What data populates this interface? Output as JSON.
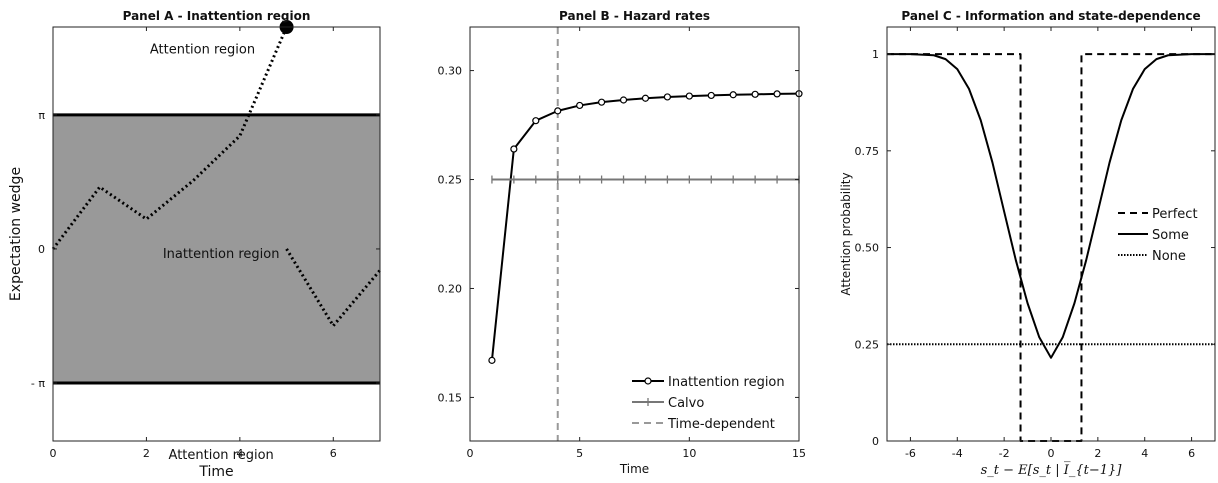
{
  "chart_data": [
    {
      "panel": "A",
      "type": "line",
      "title": "Panel A - Inattention region",
      "xlabel": "Time",
      "ylabel": "Expectation wedge",
      "xlim": [
        0,
        7
      ],
      "ylim": [
        -4.5,
        5.2
      ],
      "xticks": [
        0,
        2,
        4,
        6
      ],
      "yticks": [
        {
          "value": 3.14159,
          "label": "π"
        },
        {
          "value": 0,
          "label": "0"
        },
        {
          "value": -3.14159,
          "label": "- π"
        }
      ],
      "band": {
        "lower": -3.14159,
        "upper": 3.14159,
        "color": "#999999",
        "edge_color": "#000000"
      },
      "annotations": [
        {
          "text": "Attention region",
          "x": 3.2,
          "y": 4.7
        },
        {
          "text": "Inattention region",
          "x": 3.6,
          "y": -0.1
        },
        {
          "text": "Attention region",
          "x": 3.6,
          "y": -4.8
        }
      ],
      "series": [
        {
          "style": "dotted",
          "color": "#000000",
          "x": [
            0,
            1,
            2,
            3,
            4,
            5
          ],
          "y": [
            0,
            1.45,
            0.7,
            1.6,
            2.65,
            5.2
          ]
        },
        {
          "style": "dotted",
          "color": "#000000",
          "x": [
            5,
            6,
            7
          ],
          "y": [
            0,
            -1.8,
            -0.5
          ]
        }
      ],
      "marker": {
        "x": 5,
        "y": 5.2,
        "shape": "filled-circle"
      }
    },
    {
      "panel": "B",
      "type": "line",
      "title": "Panel B - Hazard rates",
      "xlabel": "Time",
      "ylabel": "",
      "xlim": [
        0,
        15
      ],
      "ylim": [
        0.13,
        0.32
      ],
      "xticks": [
        0,
        5,
        10,
        15
      ],
      "yticks": [
        0.15,
        0.2,
        0.25,
        0.3
      ],
      "ytick_labels": [
        "0.15",
        "0.20",
        "0.25",
        "0.30"
      ],
      "legend_position": "bottom-right",
      "vline": {
        "x": 4,
        "style": "dashed",
        "color": "#999999"
      },
      "series": [
        {
          "name": "Inattention region",
          "style": "solid-circles",
          "color": "#000000",
          "x": [
            1,
            2,
            3,
            4,
            5,
            6,
            7,
            8,
            9,
            10,
            11,
            12,
            13,
            14,
            15
          ],
          "y": [
            0.167,
            0.264,
            0.277,
            0.2815,
            0.284,
            0.2855,
            0.2865,
            0.2873,
            0.2879,
            0.2883,
            0.2886,
            0.2889,
            0.2891,
            0.2893,
            0.2894
          ]
        },
        {
          "name": "Calvo",
          "style": "solid-plus",
          "color": "#777777",
          "x": [
            1,
            2,
            3,
            4,
            5,
            6,
            7,
            8,
            9,
            10,
            11,
            12,
            13,
            14,
            15
          ],
          "y": [
            0.25,
            0.25,
            0.25,
            0.25,
            0.25,
            0.25,
            0.25,
            0.25,
            0.25,
            0.25,
            0.25,
            0.25,
            0.25,
            0.25,
            0.25
          ]
        },
        {
          "name": "Time-dependent",
          "style": "dashed",
          "color": "#999999",
          "x": [],
          "y": []
        }
      ]
    },
    {
      "panel": "C",
      "type": "line",
      "title": "Panel C - Information and state-dependence",
      "xlabel": "s_t − E[s_t | I̅_{t−1}]",
      "ylabel": "Attention probability",
      "xlim": [
        -7,
        7
      ],
      "ylim": [
        0,
        1.07
      ],
      "xticks": [
        -6,
        -4,
        -2,
        0,
        2,
        4,
        6
      ],
      "yticks": [
        0,
        0.25,
        0.5,
        0.75,
        1
      ],
      "ytick_labels": [
        "0",
        "0.25",
        "0.50",
        "0.75",
        "1"
      ],
      "legend_position": "right",
      "series": [
        {
          "name": "Perfect",
          "style": "dashed",
          "color": "#000000",
          "x": [
            -7,
            -1.3,
            -1.3,
            1.3,
            1.3,
            7
          ],
          "y": [
            1,
            1,
            0,
            0,
            1,
            1
          ]
        },
        {
          "name": "Some",
          "style": "solid",
          "color": "#000000",
          "x": [
            -7,
            -6,
            -5,
            -4.5,
            -4,
            -3.5,
            -3,
            -2.5,
            -2,
            -1.5,
            -1,
            -0.5,
            0,
            0.5,
            1,
            1.5,
            2,
            2.5,
            3,
            3.5,
            4,
            4.5,
            5,
            6,
            7
          ],
          "y": [
            1,
            1,
            0.997,
            0.987,
            0.961,
            0.91,
            0.829,
            0.72,
            0.593,
            0.467,
            0.356,
            0.268,
            0.215,
            0.268,
            0.356,
            0.467,
            0.593,
            0.72,
            0.829,
            0.91,
            0.961,
            0.987,
            0.997,
            1,
            1
          ]
        },
        {
          "name": "None",
          "style": "dotted",
          "color": "#000000",
          "x": [
            -7,
            7
          ],
          "y": [
            0.25,
            0.25
          ]
        }
      ]
    }
  ]
}
